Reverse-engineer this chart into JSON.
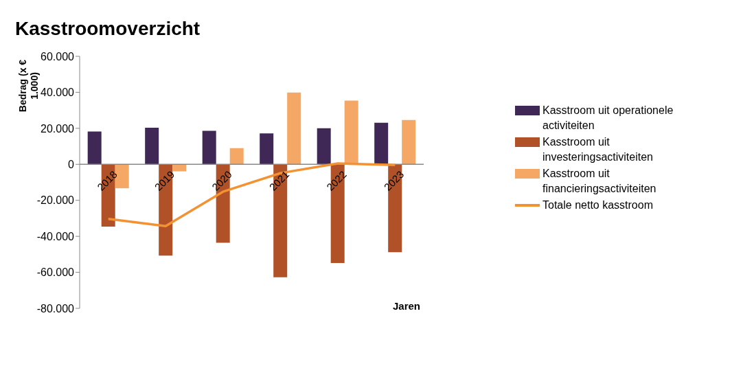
{
  "chart_data": {
    "type": "bar",
    "title": "Kasstroomoverzicht",
    "xlabel": "Jaren",
    "ylabel": "Bedrag (x € 1.000)",
    "categories": [
      "2018",
      "2019",
      "2020",
      "2021",
      "2022",
      "2023"
    ],
    "series": [
      {
        "name": "Kasstroom uit operationele activiteiten",
        "color": "#3f2856",
        "values": [
          18200,
          20300,
          18600,
          17200,
          20000,
          23100
        ]
      },
      {
        "name": "Kasstroom uit investeringsactiviteiten",
        "color": "#b05128",
        "values": [
          -34600,
          -50700,
          -43600,
          -62700,
          -54800,
          -48800
        ]
      },
      {
        "name": "Kasstroom uit financieringsactiviteiten",
        "color": "#f5a765",
        "values": [
          -13300,
          -3900,
          9000,
          39900,
          35400,
          24600
        ]
      },
      {
        "name": "Totale netto kasstroom",
        "type": "line",
        "color": "#f39232",
        "values": [
          -30300,
          -34300,
          -15200,
          -4900,
          500,
          -400
        ]
      }
    ],
    "ylim": [
      -80000,
      60000
    ],
    "yticks": [
      {
        "value": -80000,
        "label": "-80.000"
      },
      {
        "value": -60000,
        "label": "-60.000"
      },
      {
        "value": -40000,
        "label": "-40.000"
      },
      {
        "value": -20000,
        "label": "-20.000"
      },
      {
        "value": 0,
        "label": "0"
      },
      {
        "value": 20000,
        "label": "20.000"
      },
      {
        "value": 40000,
        "label": "40.000"
      },
      {
        "value": 60000,
        "label": "60.000"
      }
    ],
    "grid": false,
    "legend": "right",
    "marker": "none"
  }
}
